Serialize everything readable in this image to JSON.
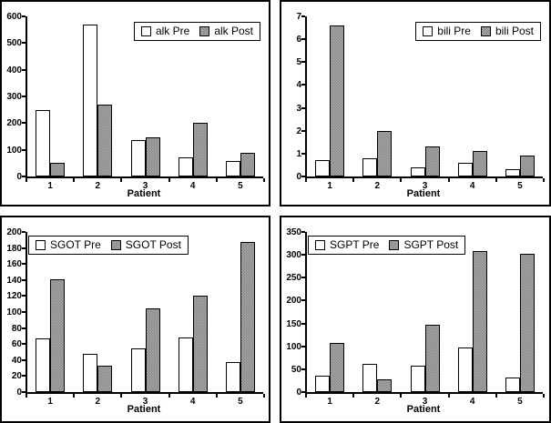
{
  "colors": {
    "background": "#ffffff",
    "axis": "#000000",
    "bar_pre_fill": "#ffffff",
    "bar_post_fill": "#979797",
    "panel_border": "#000000"
  },
  "chart_data": {
    "type": "bar",
    "layout": "2x2-grid",
    "categories": [
      "1",
      "2",
      "3",
      "4",
      "5"
    ],
    "xlabel": "Patient",
    "charts": [
      {
        "name": "alk",
        "title": "",
        "ylim": [
          0,
          600
        ],
        "ytick_step": 100,
        "legend_position": "top-right",
        "series": [
          {
            "name": "alk Pre",
            "values": [
              250,
              570,
              135,
              73,
              57
            ]
          },
          {
            "name": "alk Post",
            "values": [
              50,
              270,
              147,
              200,
              87
            ]
          }
        ]
      },
      {
        "name": "bili",
        "title": "",
        "ylim": [
          0,
          7
        ],
        "ytick_step": 1,
        "legend_position": "top-right",
        "series": [
          {
            "name": "bili Pre",
            "values": [
              0.7,
              0.8,
              0.4,
              0.6,
              0.3
            ]
          },
          {
            "name": "bili Post",
            "values": [
              6.6,
              2.0,
              1.3,
              1.1,
              0.9
            ]
          }
        ]
      },
      {
        "name": "SGOT",
        "title": "",
        "ylim": [
          0,
          200
        ],
        "ytick_step": 20,
        "legend_position": "top-left",
        "series": [
          {
            "name": "SGOT Pre",
            "values": [
              67,
              48,
              55,
              68,
              37
            ]
          },
          {
            "name": "SGOT Post",
            "values": [
              141,
              33,
              105,
              120,
              187
            ]
          }
        ]
      },
      {
        "name": "SGPT",
        "title": "",
        "ylim": [
          0,
          350
        ],
        "ytick_step": 50,
        "legend_position": "top-left",
        "series": [
          {
            "name": "SGPT Pre",
            "values": [
              35,
              62,
              58,
              97,
              31
            ]
          },
          {
            "name": "SGPT Post",
            "values": [
              108,
              27,
              147,
              308,
              302
            ]
          }
        ]
      }
    ]
  }
}
